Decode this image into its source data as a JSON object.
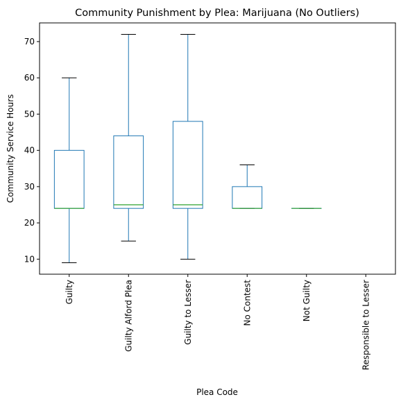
{
  "chart_data": {
    "type": "box",
    "title": "Community Punishment by Plea: Marijuana (No Outliers)",
    "xlabel": "Plea Code",
    "ylabel": "Community Service Hours",
    "ylim": [
      5.85,
      75.15
    ],
    "yticks": [
      10,
      20,
      30,
      40,
      50,
      60,
      70
    ],
    "grid": false,
    "colors": {
      "box": "#1f77b4",
      "median": "#2ca02c",
      "whisker": "#1f77b4",
      "cap": "#000000",
      "axis": "#000000"
    },
    "categories": [
      "Guilty",
      "Guilty Alford Plea",
      "Guilty to Lesser",
      "No Contest",
      "Not Guilty",
      "Responsible to Lesser"
    ],
    "boxes": [
      {
        "category": "Guilty",
        "min": 9,
        "q1": 24,
        "median": 24,
        "q3": 40,
        "max": 60
      },
      {
        "category": "Guilty Alford Plea",
        "min": 15,
        "q1": 24,
        "median": 25,
        "q3": 44,
        "max": 72
      },
      {
        "category": "Guilty to Lesser",
        "min": 10,
        "q1": 24,
        "median": 25,
        "q3": 48,
        "max": 72
      },
      {
        "category": "No Contest",
        "min": 24,
        "q1": 24,
        "median": 24,
        "q3": 30,
        "max": 36
      },
      {
        "category": "Not Guilty",
        "min": 24,
        "q1": 24,
        "median": 24,
        "q3": 24,
        "max": 24
      },
      {
        "category": "Responsible to Lesser",
        "min": null,
        "q1": null,
        "median": null,
        "q3": null,
        "max": null
      }
    ]
  }
}
